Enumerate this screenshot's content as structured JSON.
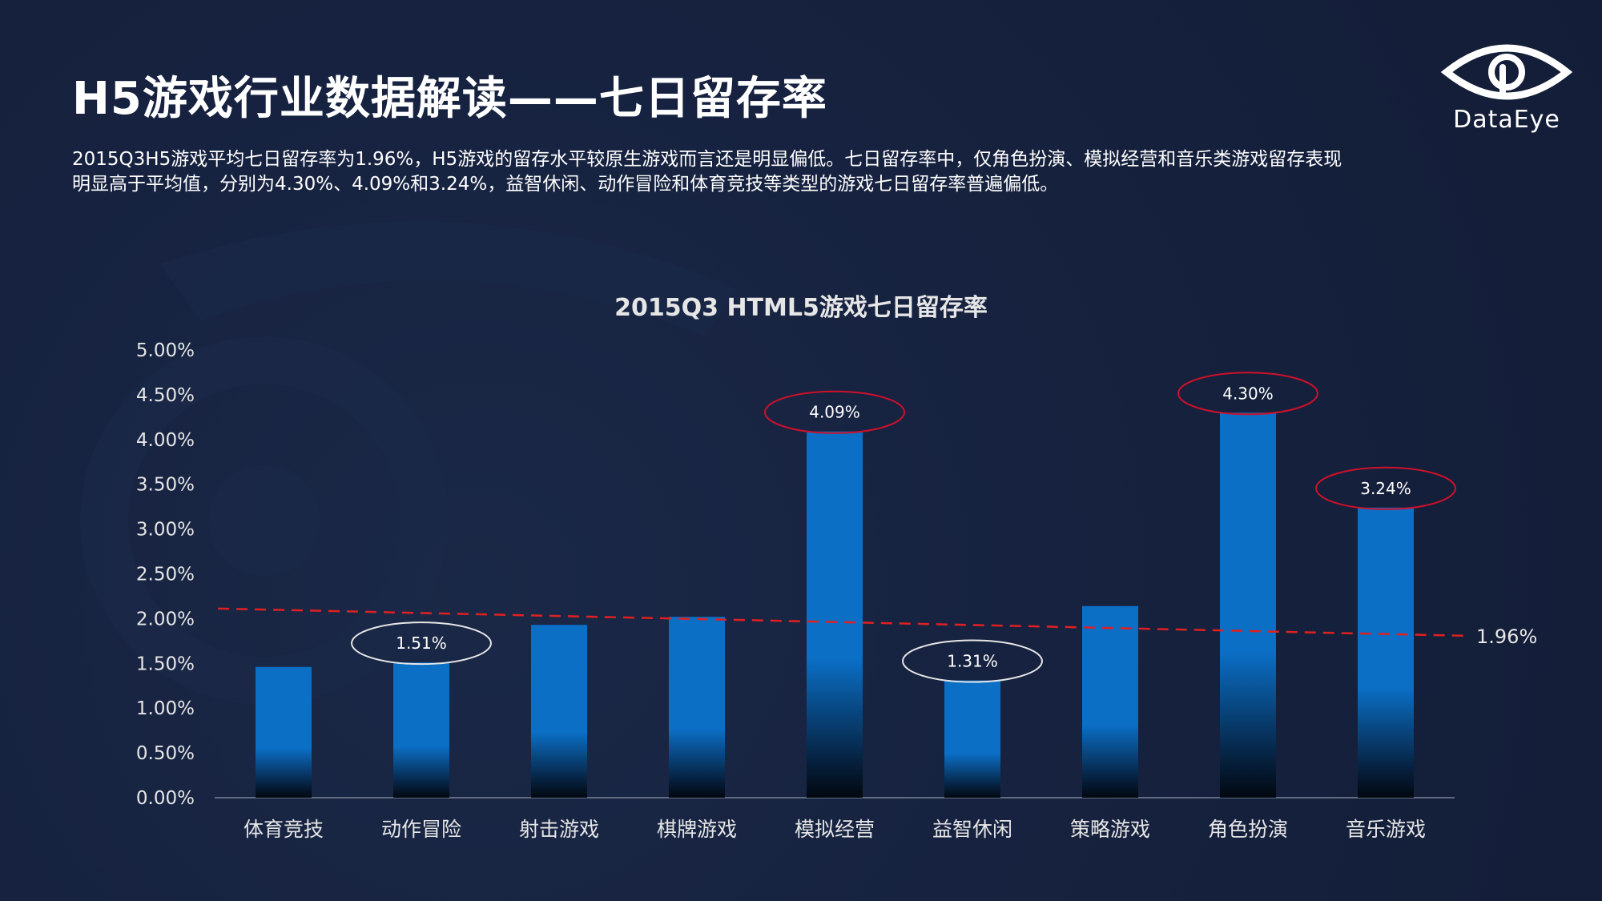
{
  "slide": {
    "title": "H5游戏行业数据解读——七日留存率",
    "description_line1": "2015Q3H5游戏平均七日留存率为1.96%，H5游戏的留存水平较原生游戏而言还是明显偏低。七日留存率中，仅角色扮演、模拟经营和音乐类游戏留存表现",
    "description_line2": "明显高于平均值，分别为4.30%、4.09%和3.24%，益智休闲、动作冒险和体育竞技等类型的游戏七日留存率普遍偏低。"
  },
  "logo": {
    "text": "DataEye",
    "icon": "eye-icon"
  },
  "colors": {
    "background": "#15203b",
    "bar": "#0b6fc6",
    "average_line": "#e02020",
    "highlight_circle": "#d0102a",
    "low_circle": "#e6e6e6",
    "text": "#ffffff",
    "axis_text": "#e6e6e6"
  },
  "chart_data": {
    "type": "bar",
    "title": "2015Q3 HTML5游戏七日留存率",
    "categories": [
      "体育竞技",
      "动作冒险",
      "射击游戏",
      "棋牌游戏",
      "模拟经营",
      "益智休闲",
      "策略游戏",
      "角色扮演",
      "音乐游戏"
    ],
    "values": [
      1.46,
      1.51,
      1.93,
      2.02,
      4.09,
      1.31,
      2.14,
      4.3,
      3.24
    ],
    "ylim": [
      0,
      5
    ],
    "yticks": [
      "0.00%",
      "0.50%",
      "1.00%",
      "1.50%",
      "2.00%",
      "2.50%",
      "3.00%",
      "3.50%",
      "4.00%",
      "4.50%",
      "5.00%"
    ],
    "grid": false,
    "average": {
      "value": 1.96,
      "label": "1.96%"
    },
    "annotations": [
      {
        "category": "动作冒险",
        "label": "1.51%",
        "style": "low"
      },
      {
        "category": "模拟经营",
        "label": "4.09%",
        "style": "high"
      },
      {
        "category": "益智休闲",
        "label": "1.31%",
        "style": "low"
      },
      {
        "category": "角色扮演",
        "label": "4.30%",
        "style": "high"
      },
      {
        "category": "音乐游戏",
        "label": "3.24%",
        "style": "high"
      }
    ]
  }
}
